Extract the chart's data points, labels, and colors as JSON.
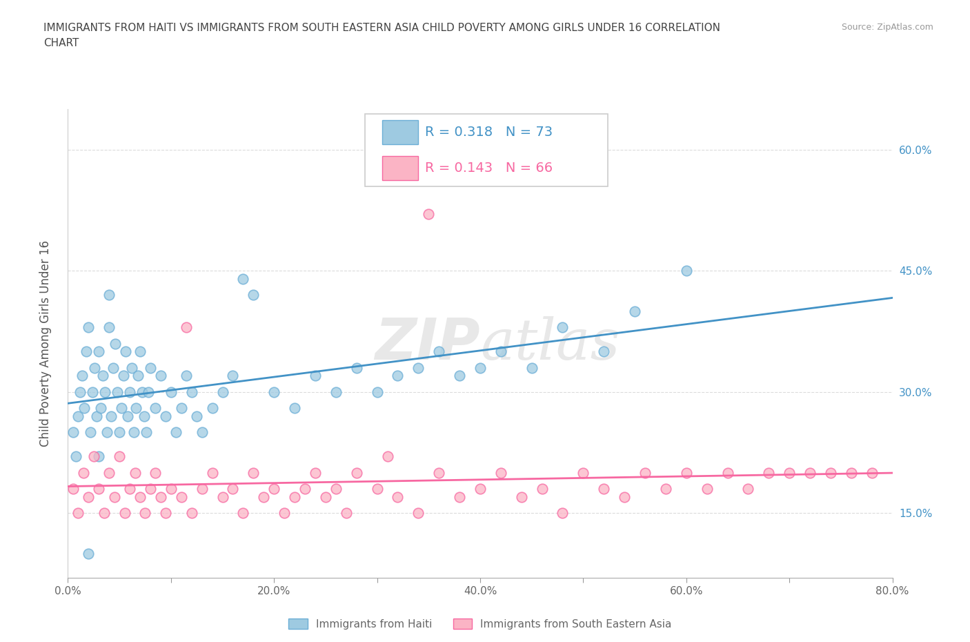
{
  "title": "IMMIGRANTS FROM HAITI VS IMMIGRANTS FROM SOUTH EASTERN ASIA CHILD POVERTY AMONG GIRLS UNDER 16 CORRELATION\nCHART",
  "source": "Source: ZipAtlas.com",
  "ylabel": "Child Poverty Among Girls Under 16",
  "xlim": [
    0.0,
    0.8
  ],
  "ylim": [
    0.07,
    0.65
  ],
  "xticks": [
    0.0,
    0.2,
    0.4,
    0.6,
    0.8
  ],
  "xticklabels": [
    "0.0%",
    "20.0%",
    "40.0%",
    "60.0%",
    "80.0%"
  ],
  "yticks": [
    0.15,
    0.3,
    0.45,
    0.6
  ],
  "yticklabels": [
    "15.0%",
    "30.0%",
    "45.0%",
    "60.0%"
  ],
  "color_haiti": "#9ecae1",
  "color_haiti_fill": "#9ecae1",
  "color_haiti_edge": "#6baed6",
  "color_haiti_line": "#4292c6",
  "color_sea": "#fbb4c5",
  "color_sea_edge": "#f768a1",
  "color_sea_line": "#f768a1",
  "watermark": "ZIPAtlas",
  "legend_label_haiti": "Immigrants from Haiti",
  "legend_label_sea": "Immigrants from South Eastern Asia",
  "haiti_x": [
    0.005,
    0.008,
    0.01,
    0.012,
    0.014,
    0.016,
    0.018,
    0.02,
    0.022,
    0.024,
    0.026,
    0.028,
    0.03,
    0.03,
    0.032,
    0.034,
    0.036,
    0.038,
    0.04,
    0.04,
    0.042,
    0.044,
    0.046,
    0.048,
    0.05,
    0.052,
    0.054,
    0.056,
    0.058,
    0.06,
    0.062,
    0.064,
    0.066,
    0.068,
    0.07,
    0.072,
    0.074,
    0.076,
    0.078,
    0.08,
    0.085,
    0.09,
    0.095,
    0.1,
    0.105,
    0.11,
    0.115,
    0.12,
    0.125,
    0.13,
    0.14,
    0.15,
    0.16,
    0.17,
    0.18,
    0.2,
    0.22,
    0.24,
    0.26,
    0.28,
    0.3,
    0.32,
    0.34,
    0.36,
    0.38,
    0.4,
    0.42,
    0.45,
    0.48,
    0.52,
    0.55,
    0.6,
    0.02
  ],
  "haiti_y": [
    0.25,
    0.22,
    0.27,
    0.3,
    0.32,
    0.28,
    0.35,
    0.38,
    0.25,
    0.3,
    0.33,
    0.27,
    0.22,
    0.35,
    0.28,
    0.32,
    0.3,
    0.25,
    0.38,
    0.42,
    0.27,
    0.33,
    0.36,
    0.3,
    0.25,
    0.28,
    0.32,
    0.35,
    0.27,
    0.3,
    0.33,
    0.25,
    0.28,
    0.32,
    0.35,
    0.3,
    0.27,
    0.25,
    0.3,
    0.33,
    0.28,
    0.32,
    0.27,
    0.3,
    0.25,
    0.28,
    0.32,
    0.3,
    0.27,
    0.25,
    0.28,
    0.3,
    0.32,
    0.44,
    0.42,
    0.3,
    0.28,
    0.32,
    0.3,
    0.33,
    0.3,
    0.32,
    0.33,
    0.35,
    0.32,
    0.33,
    0.35,
    0.33,
    0.38,
    0.35,
    0.4,
    0.45,
    0.1
  ],
  "sea_x": [
    0.005,
    0.01,
    0.015,
    0.02,
    0.025,
    0.03,
    0.035,
    0.04,
    0.045,
    0.05,
    0.055,
    0.06,
    0.065,
    0.07,
    0.075,
    0.08,
    0.085,
    0.09,
    0.095,
    0.1,
    0.11,
    0.12,
    0.13,
    0.14,
    0.15,
    0.16,
    0.17,
    0.18,
    0.19,
    0.2,
    0.21,
    0.22,
    0.23,
    0.24,
    0.25,
    0.26,
    0.27,
    0.28,
    0.3,
    0.32,
    0.34,
    0.36,
    0.38,
    0.4,
    0.42,
    0.44,
    0.46,
    0.48,
    0.5,
    0.52,
    0.54,
    0.56,
    0.58,
    0.6,
    0.62,
    0.64,
    0.66,
    0.68,
    0.7,
    0.72,
    0.74,
    0.76,
    0.78,
    0.31,
    0.35,
    0.115
  ],
  "sea_y": [
    0.18,
    0.15,
    0.2,
    0.17,
    0.22,
    0.18,
    0.15,
    0.2,
    0.17,
    0.22,
    0.15,
    0.18,
    0.2,
    0.17,
    0.15,
    0.18,
    0.2,
    0.17,
    0.15,
    0.18,
    0.17,
    0.15,
    0.18,
    0.2,
    0.17,
    0.18,
    0.15,
    0.2,
    0.17,
    0.18,
    0.15,
    0.17,
    0.18,
    0.2,
    0.17,
    0.18,
    0.15,
    0.2,
    0.18,
    0.17,
    0.15,
    0.2,
    0.17,
    0.18,
    0.2,
    0.17,
    0.18,
    0.15,
    0.2,
    0.18,
    0.17,
    0.2,
    0.18,
    0.2,
    0.18,
    0.2,
    0.18,
    0.2,
    0.2,
    0.2,
    0.2,
    0.2,
    0.2,
    0.22,
    0.52,
    0.38
  ]
}
